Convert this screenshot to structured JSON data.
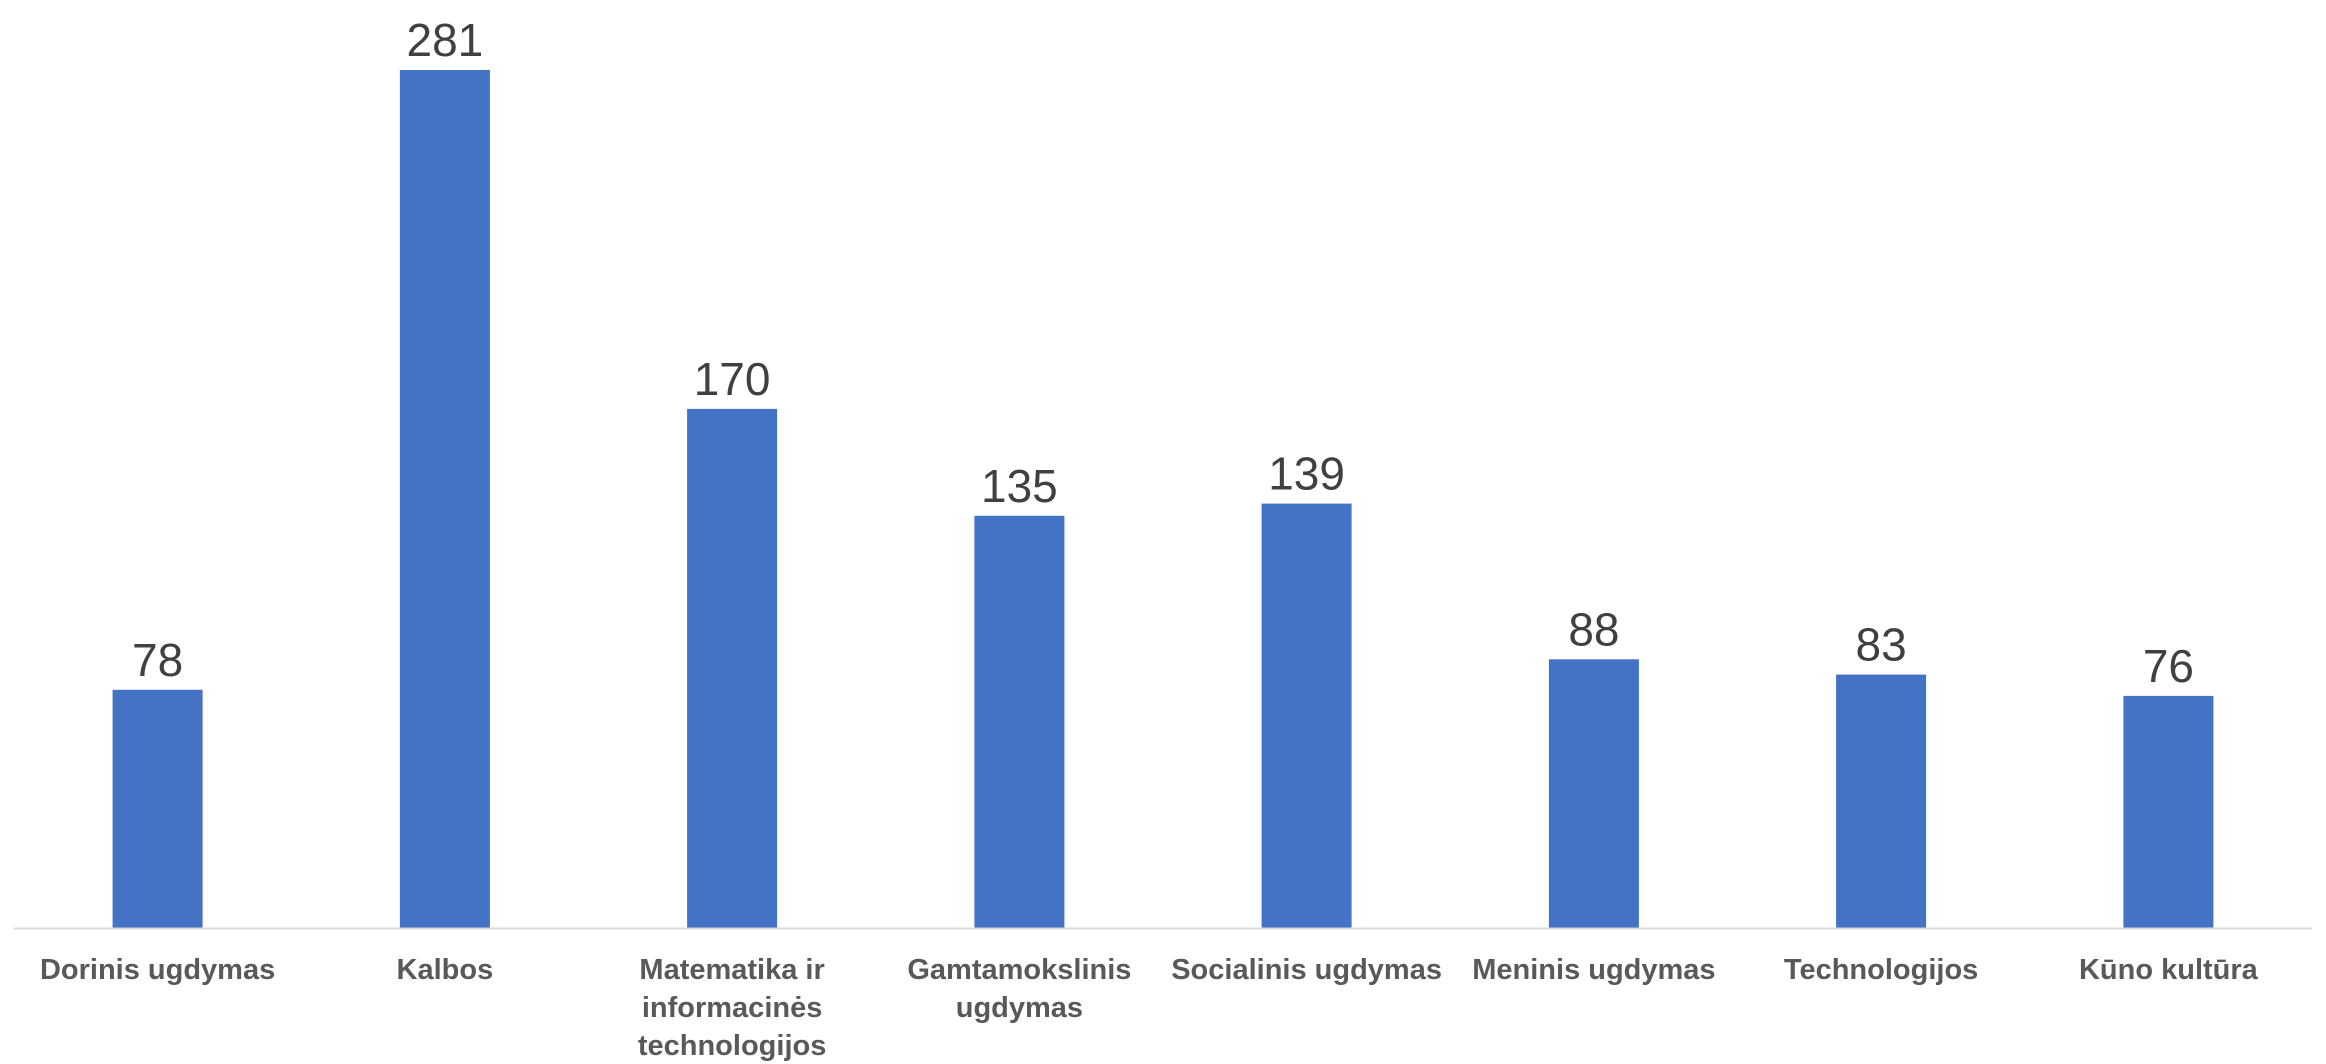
{
  "chart_data": {
    "type": "bar",
    "title": "",
    "xlabel": "",
    "ylabel": "",
    "categories": [
      [
        "Dorinis ugdymas"
      ],
      [
        "Kalbos"
      ],
      [
        "Matematika ir",
        "informacinės",
        "technologijos"
      ],
      [
        "Gamtamokslinis",
        "ugdymas"
      ],
      [
        "Socialinis ugdymas"
      ],
      [
        "Meninis ugdymas"
      ],
      [
        "Technologijos"
      ],
      [
        "Kūno kultūra"
      ]
    ],
    "values": [
      78,
      281,
      170,
      135,
      139,
      88,
      83,
      76
    ],
    "ylim": [
      0,
      281
    ],
    "grid": false,
    "legend": "none",
    "bar_color": "#4472C4",
    "axis_color": "#D9D9D9",
    "label_color": "#404040",
    "category_color": "#595959"
  }
}
